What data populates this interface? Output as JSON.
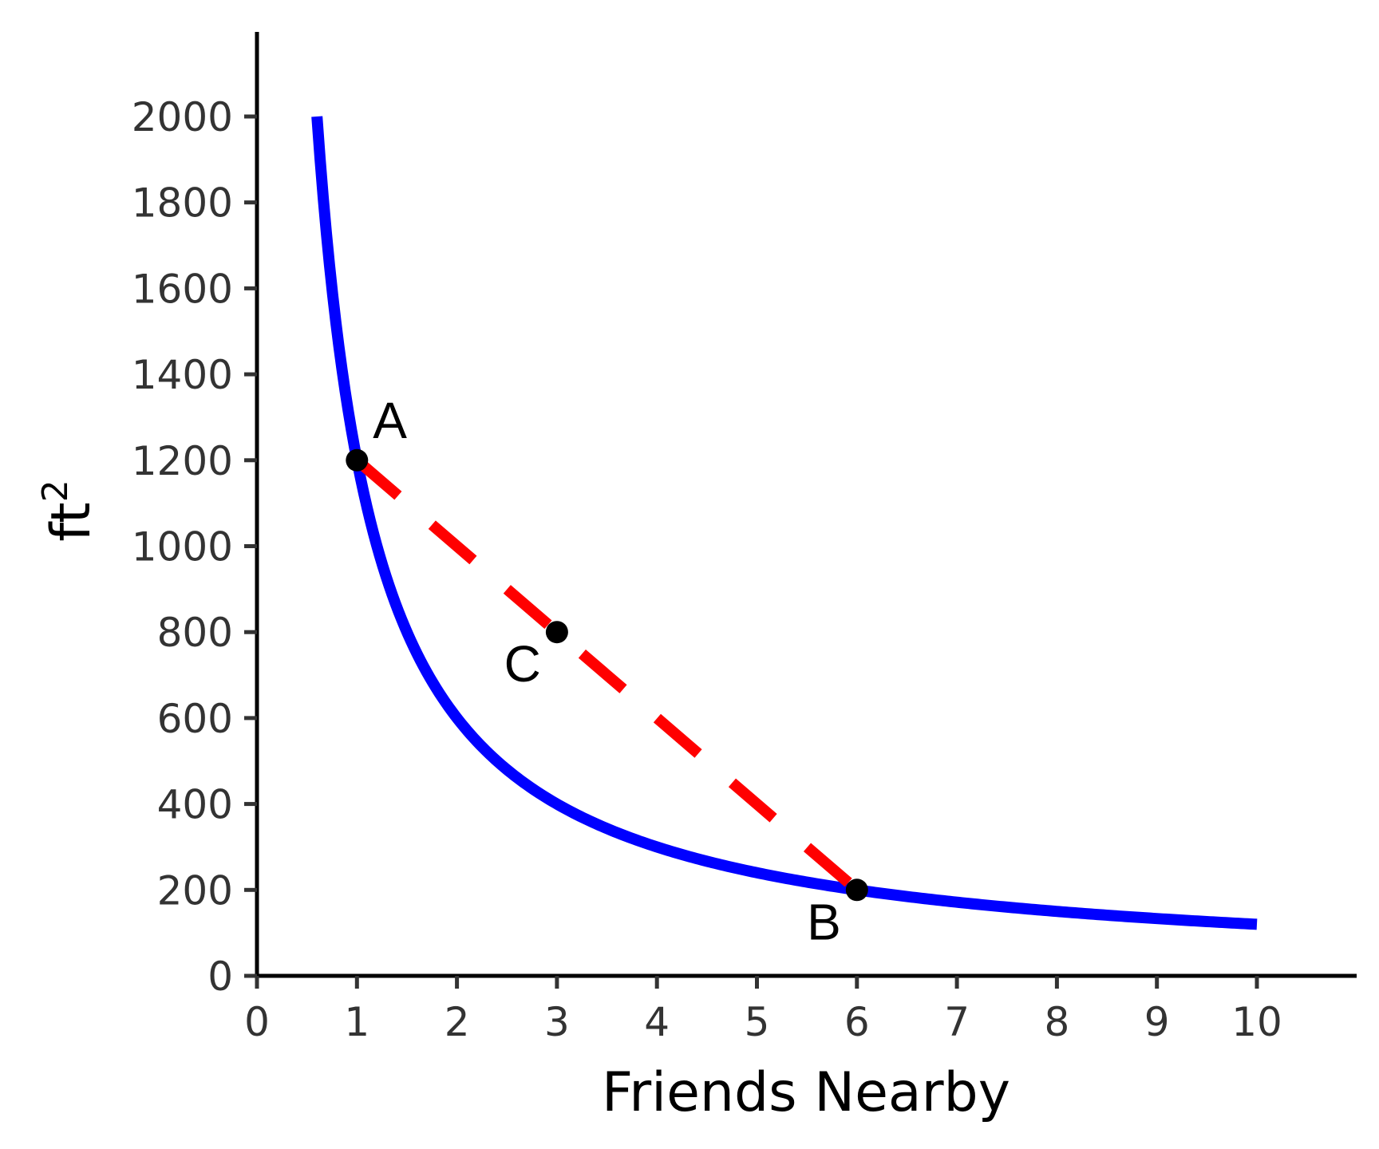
{
  "chart_data": {
    "type": "line",
    "xlabel": "Friends Nearby",
    "ylabel": "ft",
    "ylabel_superscript": "2",
    "xlim": [
      0,
      11
    ],
    "ylim": [
      0,
      2200
    ],
    "x_ticks": [
      "0",
      "1",
      "2",
      "3",
      "4",
      "5",
      "6",
      "7",
      "8",
      "9",
      "10"
    ],
    "y_ticks": [
      "0",
      "200",
      "400",
      "600",
      "800",
      "1000",
      "1200",
      "1400",
      "1600",
      "1800",
      "2000"
    ],
    "grid": false,
    "legend": "none",
    "series": [
      {
        "style": "solid",
        "color": "#0000ff",
        "function": "1200 / x",
        "x_range": [
          0.6,
          10
        ]
      },
      {
        "style": "dashed",
        "color": "#ff0000",
        "x": [
          1,
          6
        ],
        "y": [
          1200,
          200
        ]
      }
    ],
    "points": [
      {
        "label": "A",
        "x": 1,
        "y": 1200
      },
      {
        "label": "B",
        "x": 6,
        "y": 200
      },
      {
        "label": "C",
        "x": 3,
        "y": 800
      }
    ],
    "colors": {
      "axis": "#000000",
      "tick_label": "#333333",
      "marker": "#000000"
    }
  }
}
